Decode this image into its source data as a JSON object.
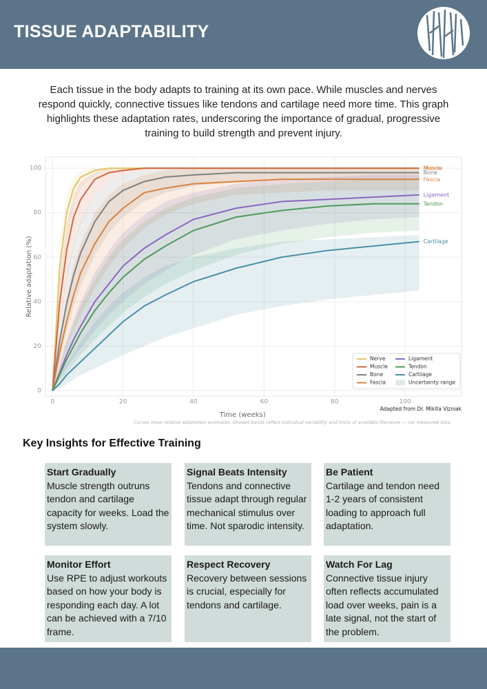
{
  "header": {
    "title": "TISSUE ADAPTABILITY"
  },
  "intro": "Each tissue in the body adapts to training at its own pace. While muscles and nerves respond quickly, connective tissues like tendons and cartilage need more time. This graph highlights these adaptation rates, underscoring the importance of gradual, progressive training to build strength and prevent injury.",
  "chart_data": {
    "type": "line",
    "xlabel": "Time (weeks)",
    "ylabel": "Relative adaptation (%)",
    "x": [
      0,
      2,
      4,
      6,
      8,
      12,
      16,
      20,
      26,
      32,
      40,
      52,
      65,
      78,
      91,
      104
    ],
    "xlim": [
      -2,
      116
    ],
    "ylim": [
      -2.5,
      105
    ],
    "xticks": [
      0,
      20,
      40,
      60,
      80,
      100
    ],
    "yticks": [
      0,
      20,
      40,
      60,
      80,
      100
    ],
    "grid": true,
    "legend": "lower right",
    "band_label": "Uncertainty range",
    "series": [
      {
        "name": "Nerve",
        "color": "#e2c66a",
        "values": [
          0,
          55,
          80,
          91,
          96,
          99,
          100,
          100,
          100,
          100,
          100,
          100,
          100,
          100,
          100,
          100
        ],
        "lower": [
          0,
          40,
          68,
          83,
          91,
          97,
          99,
          100,
          100,
          100,
          100,
          100,
          100,
          100,
          100,
          100
        ],
        "upper": [
          0,
          65,
          88,
          96,
          99,
          100,
          100,
          100,
          100,
          100,
          100,
          100,
          100,
          100,
          100,
          100
        ]
      },
      {
        "name": "Muscle",
        "color": "#d2663f",
        "values": [
          0,
          39,
          63,
          78,
          86,
          95,
          98,
          99,
          100,
          100,
          100,
          100,
          100,
          100,
          100,
          100
        ],
        "lower": [
          0,
          28,
          50,
          65,
          75,
          88,
          94,
          97,
          99,
          100,
          100,
          100,
          100,
          100,
          100,
          100
        ],
        "upper": [
          0,
          50,
          75,
          88,
          94,
          98,
          100,
          100,
          100,
          100,
          100,
          100,
          100,
          100,
          100,
          100
        ]
      },
      {
        "name": "Bone",
        "color": "#808080",
        "values": [
          0,
          22,
          39,
          52,
          62,
          76,
          85,
          90,
          94,
          96,
          97,
          98,
          98,
          98,
          98,
          98
        ],
        "lower": [
          0,
          14,
          27,
          38,
          47,
          61,
          71,
          78,
          85,
          89,
          92,
          94,
          95,
          95,
          95,
          95
        ],
        "upper": [
          0,
          30,
          52,
          66,
          76,
          88,
          94,
          97,
          99,
          100,
          100,
          100,
          100,
          100,
          100,
          100
        ]
      },
      {
        "name": "Fascia",
        "color": "#d8823d",
        "values": [
          0,
          17,
          31,
          43,
          53,
          66,
          76,
          82,
          89,
          91,
          93,
          94,
          95,
          95,
          95,
          95
        ],
        "lower": [
          0,
          10,
          19,
          27,
          34,
          46,
          56,
          64,
          73,
          79,
          84,
          88,
          89,
          90,
          90,
          90
        ],
        "upper": [
          0,
          24,
          42,
          56,
          66,
          80,
          88,
          93,
          97,
          99,
          100,
          100,
          100,
          100,
          100,
          100
        ]
      },
      {
        "name": "Ligament",
        "color": "#8a66c0",
        "values": [
          0,
          8,
          16,
          23,
          29,
          40,
          48,
          56,
          64,
          70,
          77,
          82,
          85,
          86,
          87,
          88
        ],
        "lower": [
          0,
          5,
          10,
          15,
          19,
          27,
          34,
          40,
          48,
          54,
          61,
          68,
          72,
          75,
          77,
          78
        ],
        "upper": [
          0,
          12,
          23,
          32,
          40,
          53,
          63,
          71,
          79,
          85,
          89,
          93,
          95,
          96,
          97,
          97
        ]
      },
      {
        "name": "Tendon",
        "color": "#4c9a5a",
        "values": [
          0,
          7,
          14,
          20,
          26,
          36,
          44,
          51,
          59,
          65,
          72,
          78,
          81,
          83,
          84,
          84
        ],
        "lower": [
          0,
          4,
          8,
          12,
          16,
          23,
          29,
          35,
          42,
          48,
          54,
          61,
          66,
          69,
          71,
          72
        ],
        "upper": [
          0,
          11,
          21,
          30,
          38,
          50,
          60,
          68,
          76,
          82,
          87,
          91,
          93,
          94,
          95,
          95
        ]
      },
      {
        "name": "Cartilage",
        "color": "#4a8ea6",
        "values": [
          0,
          3,
          7,
          10,
          13,
          19,
          25,
          31,
          38,
          43,
          49,
          55,
          60,
          63,
          65,
          67
        ],
        "lower": [
          0,
          1,
          3,
          5,
          7,
          10,
          13,
          16,
          20,
          24,
          28,
          34,
          38,
          41,
          43,
          45
        ],
        "upper": [
          0,
          6,
          12,
          17,
          22,
          31,
          38,
          44,
          51,
          56,
          60,
          64,
          67,
          68,
          69,
          70
        ]
      }
    ],
    "credit": "Adapted from Dr. Mikita Vizniak",
    "note": "Curves show relative adaptation estimates. Shaded bands reflect individual variability and limits of available literature — not measured data."
  },
  "insights": {
    "heading": "Key Insights for Effective Training",
    "cards": [
      {
        "title": "Start Gradually",
        "text": "Muscle strength outruns tendon and cartilage capacity for weeks. Load the system slowly."
      },
      {
        "title": "Signal Beats Intensity",
        "text": "Tendons and connective tissue adapt through regular mechanical stimulus over time. Not sparodic intensity."
      },
      {
        "title": "Be Patient",
        "text": "Cartilage and tendon need 1-2 years of consistent loading to approach full adaptation."
      },
      {
        "title": "Monitor Effort",
        "text": "Use RPE to adjust workouts based on how your body is responding each day. A lot can be achieved with a 7/10 frame."
      },
      {
        "title": "Respect Recovery",
        "text": "Recovery between sessions is crucial, especially for tendons and cartilage."
      },
      {
        "title": "Watch For Lag",
        "text": "Connective tissue injury often reflects accumulated load over weeks, pain is a late signal, not the start of the problem."
      }
    ]
  }
}
